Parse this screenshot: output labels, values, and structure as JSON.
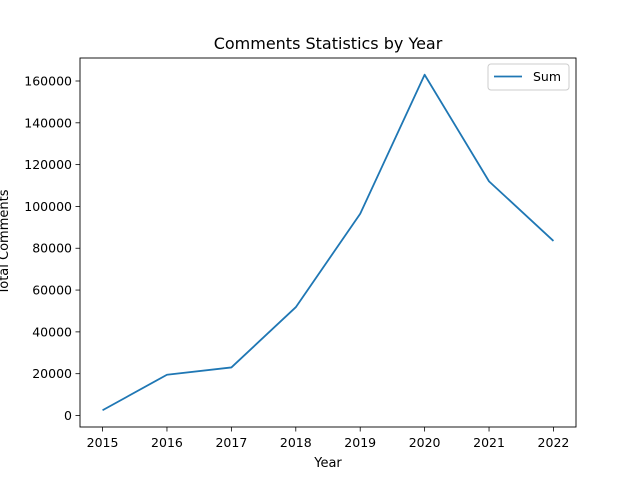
{
  "chart_data": {
    "type": "line",
    "title": "Comments Statistics by Year",
    "xlabel": "Year",
    "ylabel": "Total Comments",
    "x": [
      2015,
      2016,
      2017,
      2018,
      2019,
      2020,
      2021,
      2022
    ],
    "series": [
      {
        "name": "Sum",
        "values": [
          2500,
          19500,
          23000,
          51800,
          96500,
          163000,
          112000,
          83500
        ],
        "color": "#1f77b4"
      }
    ],
    "xlim": [
      2014.65,
      2022.35
    ],
    "ylim": [
      -5500,
      171000
    ],
    "xticks": [
      2015,
      2016,
      2017,
      2018,
      2019,
      2020,
      2021,
      2022
    ],
    "yticks": [
      0,
      20000,
      40000,
      60000,
      80000,
      100000,
      120000,
      140000,
      160000
    ],
    "grid": false,
    "legend_position": "top-right"
  }
}
